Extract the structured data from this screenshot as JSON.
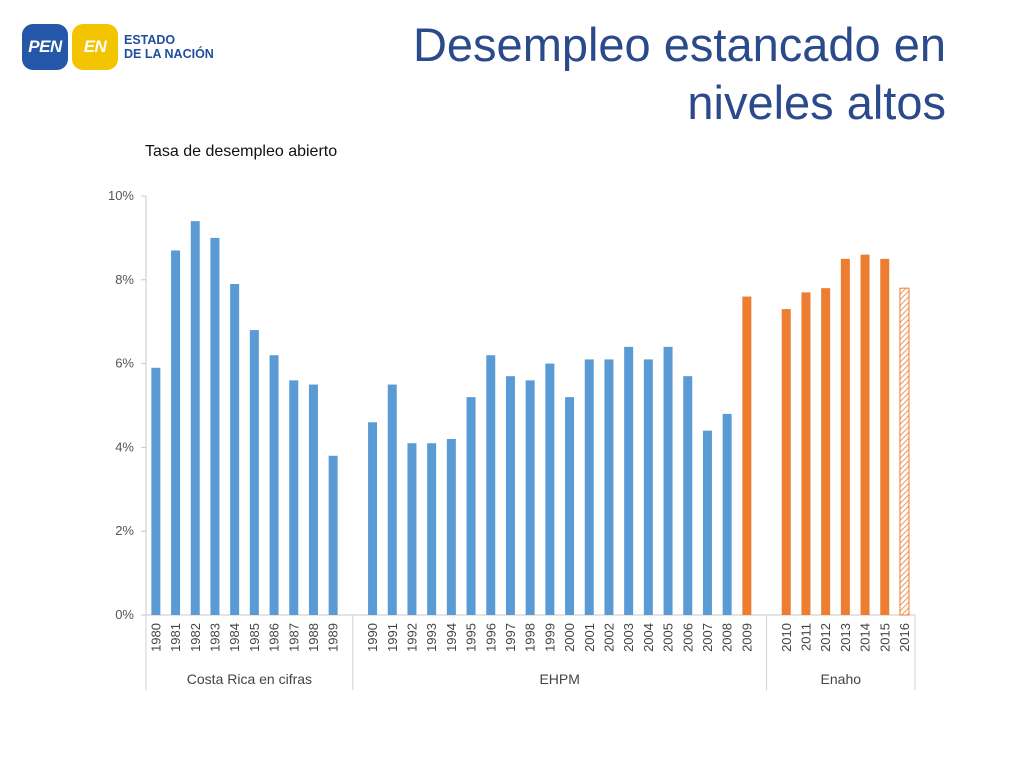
{
  "logo": {
    "badge_pen": "PEN",
    "badge_en": "EN",
    "line1": "ESTADO",
    "line2": "DE LA NACIÓN"
  },
  "header": {
    "title_line1": "Desempleo estancado en",
    "title_line2": "niveles altos"
  },
  "colors": {
    "blue": "#5b9bd5",
    "orange": "#ed7d31",
    "title": "#2b4a8b"
  },
  "chart_data": {
    "type": "bar",
    "title": "Tasa de desempleo abierto",
    "ylim": [
      0,
      10
    ],
    "yticks": [
      "0%",
      "2%",
      "4%",
      "6%",
      "8%",
      "10%"
    ],
    "grid": false,
    "groups": [
      {
        "name": "Costa Rica en cifras",
        "color": "#5b9bd5",
        "categories": [
          "1980",
          "1981",
          "1982",
          "1983",
          "1984",
          "1985",
          "1986",
          "1987",
          "1988",
          "1989"
        ],
        "values": [
          5.9,
          8.7,
          9.4,
          9.0,
          7.9,
          6.8,
          6.2,
          5.6,
          5.5,
          3.8
        ]
      },
      {
        "name": "EHPM",
        "color": "#5b9bd5",
        "categories": [
          "1990",
          "1991",
          "1992",
          "1993",
          "1994",
          "1995",
          "1996",
          "1997",
          "1998",
          "1999",
          "2000",
          "2001",
          "2002",
          "2003",
          "2004",
          "2005",
          "2006",
          "2007",
          "2008",
          "2009"
        ],
        "values": [
          4.6,
          5.5,
          4.1,
          4.1,
          4.2,
          5.2,
          6.2,
          5.7,
          5.6,
          6.0,
          5.2,
          6.1,
          6.1,
          6.4,
          6.1,
          6.4,
          5.7,
          4.4,
          4.8,
          7.6
        ],
        "highlight_last_orange": true
      },
      {
        "name": "Enaho",
        "color": "#ed7d31",
        "categories": [
          "2010",
          "2011",
          "2012",
          "2013",
          "2014",
          "2015",
          "2016"
        ],
        "values": [
          7.3,
          7.7,
          7.8,
          8.5,
          8.6,
          8.5,
          7.8
        ],
        "hatched_last": true
      }
    ]
  }
}
